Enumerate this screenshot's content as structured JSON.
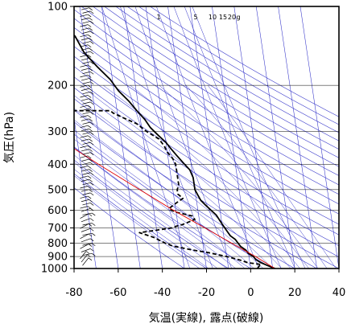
{
  "chart_data": {
    "type": "line",
    "diagram": "skew-T log-P",
    "xlabel": "気温(実線), 露点(破線)",
    "ylabel": "気圧(hPa)",
    "xlim": [
      -80,
      40
    ],
    "ylim": [
      1000,
      100
    ],
    "y_scale": "log",
    "x_ticks": [
      "-80",
      "-60",
      "-40",
      "-20",
      "0",
      "20",
      "40"
    ],
    "y_ticks": [
      "100",
      "200",
      "300",
      "400",
      "500",
      "600",
      "700",
      "800",
      "900",
      "1000"
    ],
    "mixing_ratio_labels": [
      "1",
      "5",
      "10",
      "15",
      "20",
      "g"
    ],
    "series": [
      {
        "role": "temperature",
        "style": "solid",
        "color": "#000000",
        "points": [
          [
            1000,
            11
          ],
          [
            975,
            8
          ],
          [
            950,
            5
          ],
          [
            925,
            3
          ],
          [
            900,
            2
          ],
          [
            875,
            0
          ],
          [
            850,
            -1
          ],
          [
            825,
            -3
          ],
          [
            800,
            -4
          ],
          [
            775,
            -5
          ],
          [
            750,
            -7
          ],
          [
            725,
            -8
          ],
          [
            700,
            -9
          ],
          [
            675,
            -10
          ],
          [
            650,
            -11
          ],
          [
            625,
            -12
          ],
          [
            600,
            -14
          ],
          [
            575,
            -16
          ],
          [
            550,
            -18
          ],
          [
            525,
            -19
          ],
          [
            500,
            -20
          ],
          [
            450,
            -20
          ],
          [
            420,
            -21
          ],
          [
            400,
            -23
          ],
          [
            370,
            -26
          ],
          [
            350,
            -28
          ],
          [
            330,
            -30
          ],
          [
            310,
            -33
          ],
          [
            290,
            -36
          ],
          [
            270,
            -38
          ],
          [
            250,
            -41
          ],
          [
            230,
            -44
          ],
          [
            210,
            -48
          ],
          [
            190,
            -51
          ],
          [
            170,
            -56
          ],
          [
            150,
            -61
          ],
          [
            130,
            -64
          ],
          [
            120,
            -68
          ],
          [
            110,
            -67
          ],
          [
            100,
            -68
          ]
        ]
      },
      {
        "role": "dewpoint",
        "style": "dashed",
        "color": "#000000",
        "points": [
          [
            1000,
            3
          ],
          [
            980,
            4
          ],
          [
            965,
            5
          ],
          [
            950,
            -1
          ],
          [
            930,
            -4
          ],
          [
            900,
            -10
          ],
          [
            870,
            -18
          ],
          [
            850,
            -25
          ],
          [
            820,
            -34
          ],
          [
            800,
            -37
          ],
          [
            760,
            -42
          ],
          [
            730,
            -48
          ],
          [
            710,
            -38
          ],
          [
            700,
            -33
          ],
          [
            690,
            -31
          ],
          [
            680,
            -28
          ],
          [
            650,
            -22
          ],
          [
            630,
            -23
          ],
          [
            610,
            -30
          ],
          [
            600,
            -32
          ],
          [
            590,
            -33
          ],
          [
            575,
            -31
          ],
          [
            560,
            -29
          ],
          [
            540,
            -26
          ],
          [
            520,
            -28
          ],
          [
            500,
            -28
          ],
          [
            480,
            -27
          ],
          [
            460,
            -27
          ],
          [
            430,
            -27
          ],
          [
            400,
            -27
          ],
          [
            380,
            -28
          ],
          [
            360,
            -30
          ],
          [
            340,
            -31
          ],
          [
            320,
            -33
          ],
          [
            300,
            -38
          ],
          [
            280,
            -42
          ],
          [
            265,
            -48
          ],
          [
            255,
            -52
          ],
          [
            250,
            -53
          ],
          [
            250,
            -70
          ],
          [
            252,
            -80
          ]
        ]
      },
      {
        "role": "parcel",
        "style": "solid",
        "color": "#e00000",
        "points": [
          [
            1000,
            11
          ],
          [
            900,
            3
          ],
          [
            800,
            -7
          ],
          [
            700,
            -18
          ],
          [
            600,
            -31
          ],
          [
            500,
            -45
          ],
          [
            400,
            -62
          ],
          [
            300,
            -83
          ],
          [
            250,
            -96
          ]
        ]
      }
    ],
    "wind_barbs": "vertical column at x ≈ -73 °C, 100–1000 hPa",
    "grid": {
      "isobars": true,
      "isotherms_skewed": true,
      "adiabats": true,
      "mixing_ratio_lines": true,
      "overlay_color": "#3030c8"
    }
  }
}
